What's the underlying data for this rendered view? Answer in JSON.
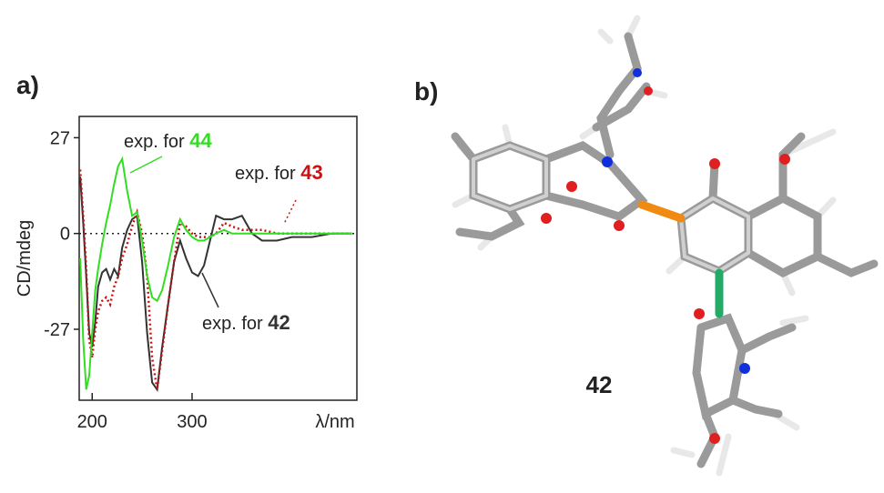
{
  "panels": {
    "a": {
      "label": "a)"
    },
    "b": {
      "label": "b)",
      "compound": "42"
    }
  },
  "chart_data": {
    "type": "line",
    "xlabel": "λ/nm",
    "ylabel": "CD/mdeg",
    "x": [
      188,
      191,
      194,
      197,
      200,
      203,
      206,
      210,
      214,
      218,
      222,
      226,
      230,
      235,
      240,
      245,
      250,
      255,
      260,
      265,
      270,
      276,
      282,
      288,
      294,
      300,
      306,
      312,
      318,
      324,
      332,
      340,
      350,
      360,
      370,
      385,
      400,
      420,
      440,
      460
    ],
    "series": [
      {
        "name": "42",
        "annotation": "exp. for",
        "color": "#333333",
        "dash": "solid",
        "values": [
          16,
          3,
          -12,
          -28,
          -32,
          -25,
          -15,
          -11,
          -10,
          -13,
          -10,
          -12,
          -4,
          1,
          4,
          5,
          -8,
          -28,
          -42,
          -44,
          -32,
          -20,
          -8,
          -2,
          -7,
          -11,
          -12,
          -9,
          -2,
          5,
          4,
          4,
          5,
          0,
          -2,
          -2,
          -1,
          -1,
          0,
          0
        ]
      },
      {
        "name": "43",
        "annotation": "exp. for",
        "color": "#cc1111",
        "dash": "dotted",
        "values": [
          18,
          5,
          -10,
          -30,
          -35,
          -27,
          -22,
          -19,
          -18,
          -20,
          -15,
          -12,
          -7,
          -3,
          2,
          6,
          0,
          -12,
          -35,
          -44,
          -33,
          -20,
          -8,
          3,
          2,
          0,
          -1,
          -1,
          -1,
          0,
          3,
          2,
          1,
          1,
          1,
          0,
          0,
          0,
          0,
          0
        ]
      },
      {
        "name": "44",
        "annotation": "exp. for",
        "color": "#33dd22",
        "dash": "solid",
        "values": [
          -7,
          -30,
          -44,
          -40,
          -28,
          -16,
          -10,
          -3,
          3,
          8,
          14,
          19,
          21,
          12,
          5,
          6,
          -2,
          -12,
          -18,
          -19,
          -16,
          -9,
          -1,
          4,
          1,
          -1,
          -2,
          -2,
          -1,
          0,
          1,
          0,
          0,
          0,
          0,
          0,
          0,
          0,
          0,
          0
        ]
      }
    ],
    "xlim": [
      187,
      465
    ],
    "ylim": [
      -47,
      33
    ],
    "xticks": [
      200,
      300
    ],
    "yticks": [
      -27,
      0,
      27
    ],
    "hline": 0
  }
}
